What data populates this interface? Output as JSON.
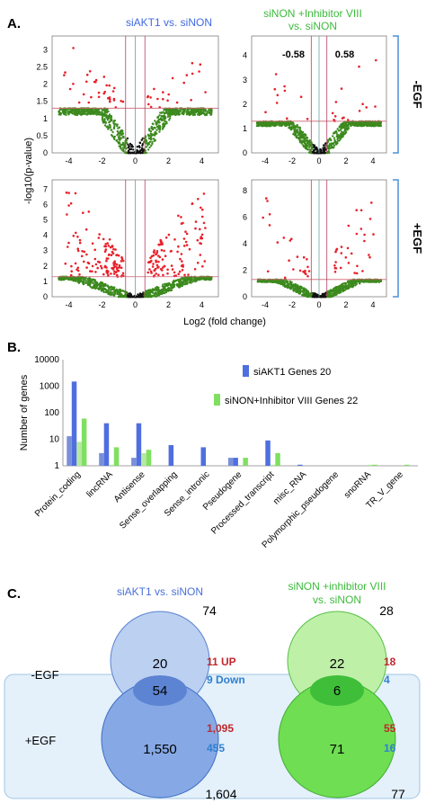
{
  "panels": {
    "a": "A.",
    "b": "B.",
    "c": "C."
  },
  "colors": {
    "sig": "#e8202a",
    "nonsig": "#3c8a1e",
    "center": "#111111",
    "blue": "#4f6fe0",
    "green": "#7fe060",
    "bracket": "#4a90d9"
  },
  "chart_data": [
    {
      "type": "scatter",
      "panel": "A",
      "col_titles": [
        "siAKT1 vs. siNON",
        "siNON +Inhibitor VIII\nvs. siNON"
      ],
      "row_labels": [
        "-EGF",
        "+EGF"
      ],
      "xlabel": "Log2 (fold change)",
      "ylabel": "-log10(p-value)",
      "xticks": [
        -4,
        -2,
        0,
        2,
        4
      ],
      "fold_cutoff_labels": [
        "-0.58",
        "0.58"
      ],
      "subplots": [
        {
          "row": "-EGF",
          "col": "siAKT1 vs. siNON",
          "yticks": [
            0,
            0.5,
            1,
            1.5,
            2,
            2.5,
            3
          ],
          "ylim": [
            0,
            3.4
          ],
          "pthresh": 1.3,
          "spread": 1.3,
          "nsig": 55
        },
        {
          "row": "-EGF",
          "col": "siNON +Inhibitor VIII vs. siNON",
          "yticks": [
            0,
            1,
            2,
            3,
            4
          ],
          "ylim": [
            0,
            4.8
          ],
          "pthresh": 1.3,
          "spread": 1.2,
          "nsig": 25
        },
        {
          "row": "+EGF",
          "col": "siAKT1 vs. siNON",
          "yticks": [
            0,
            1,
            2,
            3,
            4,
            5,
            6,
            7
          ],
          "ylim": [
            0,
            7.6
          ],
          "pthresh": 1.3,
          "spread": 0.75,
          "nsig": 230
        },
        {
          "row": "+EGF",
          "col": "siNON +Inhibitor VIII vs. siNON",
          "yticks": [
            0,
            2,
            4,
            6,
            8
          ],
          "ylim": [
            0,
            8.8
          ],
          "pthresh": 1.3,
          "spread": 0.9,
          "nsig": 55
        }
      ]
    },
    {
      "type": "bar",
      "panel": "B",
      "ylabel": "Number of genes",
      "yscale": "log",
      "yticks": [
        "1",
        "10",
        "100",
        "1000",
        "10000"
      ],
      "ylim": [
        1,
        10000
      ],
      "categories": [
        "Protein_coding",
        "lincRNA",
        "Antisense",
        "Sense_overlapping",
        "Sense_intronic",
        "Pseudogene",
        "Processed_transcript",
        "misc_RNA",
        "Polymorphic_pseudogene",
        "snoRNA",
        "TR_V_gene"
      ],
      "legend": [
        "siAKT1 Genes 20",
        "siNON+Inhibitor VIII  Genes 22"
      ],
      "series": [
        {
          "name": "siAKT1 -EGF",
          "color": "#4f6fe0",
          "values": [
            1500,
            40,
            40,
            6,
            5,
            2,
            9,
            1.1,
            1,
            1,
            1
          ]
        },
        {
          "name": "siAKT1 +EGF",
          "color": "#7a8fd8",
          "values": [
            13,
            3,
            2,
            1,
            1,
            2,
            1,
            1,
            1,
            1,
            1
          ]
        },
        {
          "name": "siNON+Inhibitor VIII -EGF",
          "color": "#7fe060",
          "values": [
            60,
            5,
            4,
            1,
            1,
            2,
            3,
            1,
            1,
            1.1,
            1.1
          ]
        },
        {
          "name": "siNON+Inhibitor VIII +EGF",
          "color": "#b6e8a0",
          "values": [
            8,
            1.1,
            3,
            1,
            1,
            1,
            1.1,
            1,
            1,
            1.1,
            1
          ]
        }
      ]
    },
    {
      "type": "venn",
      "panel": "C",
      "row_labels": [
        "-EGF",
        "+EGF"
      ],
      "diagrams": [
        {
          "title": "siAKT1 vs. siNON",
          "top_only": "20",
          "overlap": "54",
          "bottom_only": "1,550",
          "top_total": "74",
          "bottom_total": "1,604",
          "top_up": "11 UP",
          "top_down": "9 Down",
          "bottom_up": "1,095",
          "bottom_down": "455"
        },
        {
          "title": "siNON +inhibitor VIII\nvs. siNON",
          "top_only": "22",
          "overlap": "6",
          "bottom_only": "71",
          "top_total": "28",
          "bottom_total": "77",
          "top_up": "18",
          "top_down": "4",
          "bottom_up": "55",
          "bottom_down": "16"
        }
      ]
    }
  ]
}
